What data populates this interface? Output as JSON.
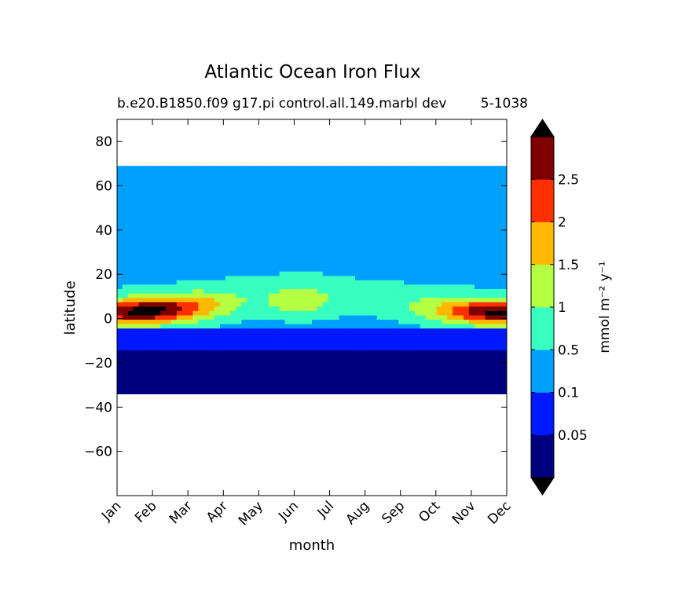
{
  "chart_data": {
    "type": "heatmap",
    "title": "Atlantic Ocean Iron Flux",
    "subtitle_left": "b.e20.B1850.f09 g17.pi control.all.149.marbl dev",
    "subtitle_right": "5-1038",
    "xlabel": "month",
    "ylabel": "latitude",
    "x_ticks": [
      "Jan",
      "Feb",
      "Mar",
      "Apr",
      "May",
      "Jun",
      "Jul",
      "Aug",
      "Sep",
      "Oct",
      "Nov",
      "Dec"
    ],
    "ylim": [
      -80,
      90
    ],
    "y_ticks": [
      80,
      60,
      40,
      20,
      0,
      -20,
      -40,
      -60
    ],
    "data_lat_range": [
      -34,
      69
    ],
    "colorbar": {
      "label": "mmol m⁻² y⁻¹",
      "extend": "both",
      "levels": [
        0,
        0.05,
        0.1,
        0.5,
        1,
        1.5,
        2,
        2.5,
        3
      ],
      "tick_labels": [
        "0.05",
        "0.1",
        "0.5",
        "1",
        "1.5",
        "2",
        "2.5"
      ],
      "colors": [
        "#00007f",
        "#0018ff",
        "#00a0ff",
        "#36ffc0",
        "#b4ff42",
        "#ffb900",
        "#ff3000",
        "#7f0000"
      ],
      "under_color": "#000000",
      "over_color": "#000000"
    }
  }
}
